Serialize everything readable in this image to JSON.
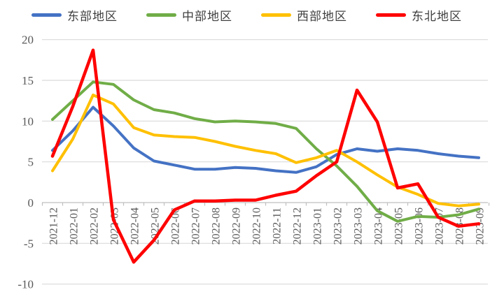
{
  "chart_data": {
    "type": "line",
    "categories": [
      "2021-12",
      "2022-01",
      "2022-02",
      "2022-03",
      "2022-04",
      "2022-05",
      "2022-06",
      "2022-07",
      "2022-08",
      "2022-09",
      "2022-10",
      "2022-11",
      "2022-12",
      "2023-01",
      "2023-02",
      "2023-03",
      "2023-04",
      "2023-05",
      "2023-06",
      "2023-07",
      "2023-08",
      "2023-09"
    ],
    "series": [
      {
        "name": "东部地区",
        "color": "#4472C4",
        "values": [
          6.4,
          8.8,
          11.7,
          9.4,
          6.7,
          5.1,
          4.6,
          4.1,
          4.1,
          4.3,
          4.2,
          3.9,
          3.7,
          4.4,
          5.9,
          6.6,
          6.3,
          6.6,
          6.4,
          6.0,
          5.7,
          5.5
        ]
      },
      {
        "name": "中部地区",
        "color": "#70AD47",
        "values": [
          10.2,
          12.5,
          14.8,
          14.5,
          12.6,
          11.4,
          11.0,
          10.3,
          9.9,
          10.0,
          9.9,
          9.7,
          9.1,
          6.6,
          4.5,
          2.0,
          -1.0,
          -2.3,
          -1.7,
          -1.8,
          -1.5,
          -0.8
        ]
      },
      {
        "name": "西部地区",
        "color": "#FFC000",
        "values": [
          3.9,
          7.8,
          13.2,
          12.1,
          9.2,
          8.3,
          8.1,
          8.0,
          7.5,
          6.9,
          6.4,
          6.0,
          4.9,
          5.5,
          6.4,
          5.0,
          3.4,
          1.9,
          1.0,
          -0.1,
          -0.4,
          -0.2
        ]
      },
      {
        "name": "东北地区",
        "color": "#FF0000",
        "values": [
          5.7,
          11.8,
          18.7,
          -2.1,
          -7.3,
          -4.6,
          -0.9,
          0.2,
          0.2,
          0.3,
          0.3,
          0.9,
          1.4,
          3.3,
          5.0,
          13.8,
          9.9,
          1.8,
          2.3,
          -1.8,
          -2.9,
          -2.6
        ]
      }
    ],
    "ylim": [
      -10,
      20
    ],
    "yticks": [
      20,
      15,
      10,
      5,
      0,
      -5,
      -10
    ],
    "grid": true,
    "legend_position": "top",
    "x_label_rotation": -90
  },
  "colors": {
    "background": "#FFFFFF",
    "gridline": "#D9D9D9",
    "axis": "#BFBFBF",
    "axis_label": "#595959",
    "legend_label": "#404040"
  }
}
